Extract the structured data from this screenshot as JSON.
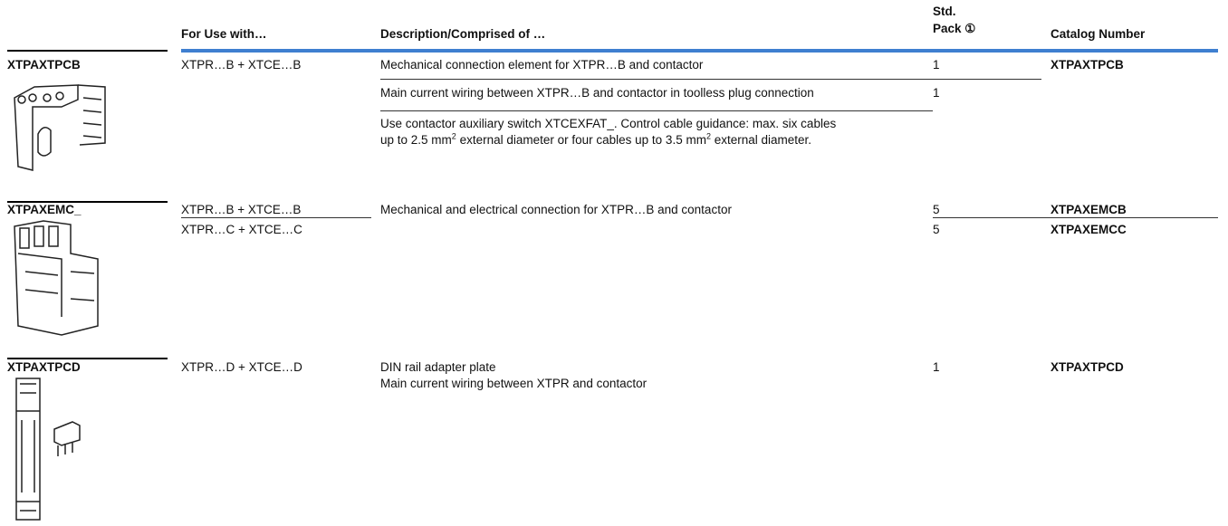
{
  "header": {
    "for_use_with": "For Use with…",
    "description": "Description/Comprised of …",
    "std_pack": [
      "Std.",
      "Pack ①"
    ],
    "catalog_number": "Catalog Number"
  },
  "groups": [
    {
      "name": "XTPAXTPCB",
      "rows": [
        {
          "for_use_with": "XTPR…B + XTCE…B",
          "description": [
            "Mechanical connection element for XTPR…B and contactor"
          ],
          "std_pack": "1",
          "catalog_number": "XTPAXTPCB"
        },
        {
          "description": [
            "Main current wiring between XTPR…B and contactor in toolless plug connection"
          ],
          "std_pack": "1"
        },
        {
          "description": [
            "Use contactor auxiliary switch XTCEXFAT_. Control cable guidance: max. six cables",
            "up to 2.5 mm",
            "2",
            " external diameter or four cables up to 3.5 mm",
            "2",
            " external diameter."
          ]
        }
      ]
    },
    {
      "name": "XTPAXEMC_",
      "rows": [
        {
          "for_use_with": "XTPR…B + XTCE…B",
          "description": [
            "Mechanical and electrical connection for XTPR…B and contactor"
          ],
          "std_pack": "5",
          "catalog_number": "XTPAXEMCB"
        },
        {
          "for_use_with": "XTPR…C + XTCE…C",
          "std_pack": "5",
          "catalog_number": "XTPAXEMCC"
        }
      ]
    },
    {
      "name": "XTPAXTPCD",
      "rows": [
        {
          "for_use_with": "XTPR…D + XTCE…D",
          "description": [
            "DIN rail adapter plate",
            "Main current wiring between XTPR and contactor"
          ],
          "std_pack": "1",
          "catalog_number": "XTPAXTPCD"
        }
      ]
    }
  ]
}
